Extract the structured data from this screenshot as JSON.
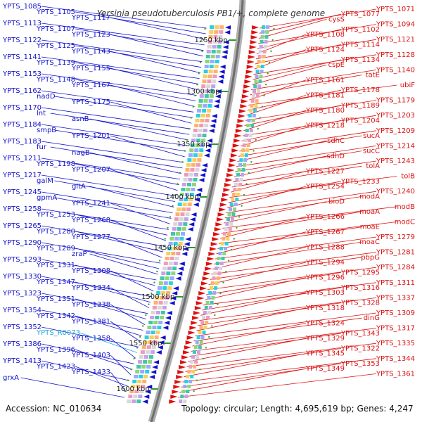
{
  "title": "Yersinia pseudotuberculosis PB1/+, complete genome",
  "footer": {
    "accession": "Accession: NC_010634",
    "summary": "Topology: circular; Length: 4,695,619 bp; Genes: 4,247"
  },
  "colors": {
    "left_genes": "#1010cc",
    "right_genes": "#dd1010",
    "rna_gene": "#22aadd",
    "backbone": "#888888",
    "tick": "#2a9a2a"
  },
  "scale_ticks": [
    "1250 kbp",
    "1300 kbp",
    "1350 kbp",
    "1400 kbp",
    "1450 kbp",
    "1500 kbp",
    "1550 kbp",
    "1600 kbp"
  ],
  "left_labels": [
    "YPTS_1085",
    "YPTS_1105",
    "YPTS_1117",
    "YPTS_1113",
    "YPTS_1107",
    "YPTS_1123",
    "YPTS_1122",
    "YPTS_1125",
    "YPTS_1143",
    "YPTS_1141",
    "YPTS_1139",
    "YPTS_1155",
    "YPTS_1153",
    "YPTS_1148",
    "YPTS_1167",
    "YPTS_1162",
    "nadD",
    "YPTS_1175",
    "YPTS_1170",
    "lnt",
    "asnB",
    "YPTS_1184",
    "smpB",
    "YPTS_1201",
    "YPTS_1183",
    "fur",
    "nagB",
    "YPTS_1211",
    "YPTS_1198",
    "YPTS_1207",
    "YPTS_1217",
    "galM",
    "gltA",
    "YPTS_1245",
    "gpmA",
    "YPTS_1241",
    "YPTS_1258",
    "YPTS_1253",
    "YPTS_1268",
    "YPTS_1265",
    "YPTS_1280",
    "YPTS_1277",
    "YPTS_1290",
    "YPTS_1289",
    "zraP",
    "YPTS_1293",
    "YPTS_1331",
    "YPTS_1308",
    "YPTS_1330",
    "YPTS_1347",
    "YPTS_1334",
    "YPTS_1323",
    "YPTS_1351",
    "YPTS_1338",
    "YPTS_1354",
    "YPTS_1342",
    "YPTS_1381",
    "YPTS_1352",
    "YPTS_R0073",
    "YPTS_1358",
    "YPTS_1386",
    "YPTS_1396",
    "YPTS_1403",
    "YPTS_1413",
    "YPTS_1423",
    "YPTS_1433",
    "grxA"
  ],
  "right_labels": [
    "YPTS_1071",
    "YPTS_1077",
    "cysS",
    "YPTS_1094",
    "YPTS_1102",
    "YPTS_1108",
    "YPTS_1121",
    "YPTS_1114",
    "YPTS_1124",
    "YPTS_1128",
    "YPTS_1134",
    "cspE",
    "YPTS_1140",
    "tatE",
    "YPTS_1161",
    "ubiF",
    "YPTS_1178",
    "YPTS_1181",
    "YPTS_1179",
    "YPTS_1189",
    "YPTS_1180",
    "YPTS_1203",
    "YPTS_1204",
    "YPTS_1218",
    "YPTS_1209",
    "sucA",
    "sdhC",
    "YPTS_1214",
    "sucC",
    "sdhD",
    "YPTS_1243",
    "tolA",
    "YPTS_1227",
    "tolB",
    "YPTS_1233",
    "YPTS_1254",
    "YPTS_1240",
    "modA",
    "bioD",
    "modB",
    "moaA",
    "YPTS_1266",
    "modC",
    "moaE",
    "YPTS_1267",
    "YPTS_1279",
    "moaC",
    "YPTS_1288",
    "YPTS_1281",
    "pbpG",
    "YPTS_1294",
    "YPTS_1284",
    "YPTS_1295",
    "YPTS_1296",
    "YPTS_1311",
    "YPTS_1316",
    "YPTS_1303",
    "YPTS_1337",
    "YPTS_1328",
    "YPTS_1318",
    "YPTS_1309",
    "dinG",
    "YPTS_1324",
    "YPTS_1317",
    "YPTS_1343",
    "YPTS_1329",
    "YPTS_1335",
    "YPTS_1322",
    "YPTS_1345",
    "YPTS_1344",
    "YPTS_1353",
    "YPTS_1349",
    "YPTS_1361"
  ]
}
